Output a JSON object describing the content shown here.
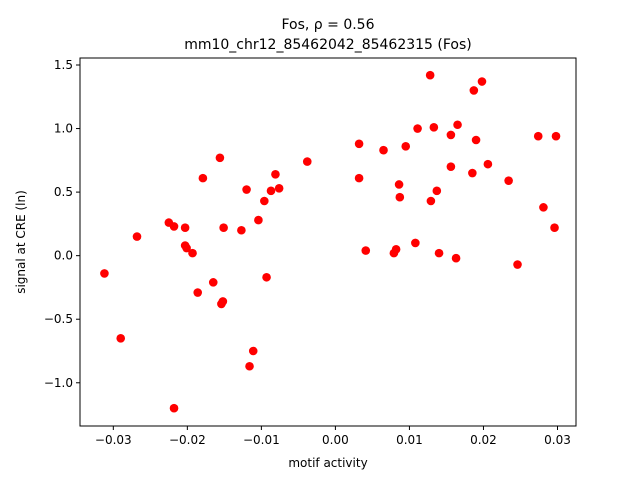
{
  "chart_data": {
    "type": "scatter",
    "title_line1": "Fos, ρ = 0.56",
    "title_line2": "mm10_chr12_85462042_85462315 (Fos)",
    "xlabel": "motif activity",
    "ylabel": "signal at CRE (ln)",
    "xlim": [
      -0.0345,
      0.0325
    ],
    "ylim": [
      -1.34,
      1.555
    ],
    "xticks": [
      -0.03,
      -0.02,
      -0.01,
      0.0,
      0.01,
      0.02,
      0.03
    ],
    "xtick_labels": [
      "−0.03",
      "−0.02",
      "−0.01",
      "0.00",
      "0.01",
      "0.02",
      "0.03"
    ],
    "yticks": [
      -1.0,
      -0.5,
      0.0,
      0.5,
      1.0,
      1.5
    ],
    "ytick_labels": [
      "−1.0",
      "−0.5",
      "0.0",
      "0.5",
      "1.0",
      "1.5"
    ],
    "grid": false,
    "marker_color": "#ff0000",
    "points": [
      {
        "x": -0.0312,
        "y": -0.14
      },
      {
        "x": -0.029,
        "y": -0.65
      },
      {
        "x": -0.0268,
        "y": 0.15
      },
      {
        "x": -0.0225,
        "y": 0.26
      },
      {
        "x": -0.0218,
        "y": 0.23
      },
      {
        "x": -0.0218,
        "y": -1.2
      },
      {
        "x": -0.0203,
        "y": 0.22
      },
      {
        "x": -0.0203,
        "y": 0.08
      },
      {
        "x": -0.0201,
        "y": 0.06
      },
      {
        "x": -0.0193,
        "y": 0.02
      },
      {
        "x": -0.0186,
        "y": -0.29
      },
      {
        "x": -0.0179,
        "y": 0.61
      },
      {
        "x": -0.0165,
        "y": -0.21
      },
      {
        "x": -0.0156,
        "y": 0.77
      },
      {
        "x": -0.0154,
        "y": -0.38
      },
      {
        "x": -0.0152,
        "y": -0.36
      },
      {
        "x": -0.0151,
        "y": 0.22
      },
      {
        "x": -0.0127,
        "y": 0.2
      },
      {
        "x": -0.012,
        "y": 0.52
      },
      {
        "x": -0.0116,
        "y": -0.87
      },
      {
        "x": -0.0111,
        "y": -0.75
      },
      {
        "x": -0.0104,
        "y": 0.28
      },
      {
        "x": -0.0096,
        "y": 0.43
      },
      {
        "x": -0.0093,
        "y": -0.17
      },
      {
        "x": -0.0087,
        "y": 0.51
      },
      {
        "x": -0.0081,
        "y": 0.64
      },
      {
        "x": -0.0076,
        "y": 0.53
      },
      {
        "x": -0.0038,
        "y": 0.74
      },
      {
        "x": 0.0032,
        "y": 0.88
      },
      {
        "x": 0.0032,
        "y": 0.61
      },
      {
        "x": 0.0041,
        "y": 0.04
      },
      {
        "x": 0.0065,
        "y": 0.83
      },
      {
        "x": 0.0079,
        "y": 0.02
      },
      {
        "x": 0.0082,
        "y": 0.05
      },
      {
        "x": 0.0086,
        "y": 0.56
      },
      {
        "x": 0.0087,
        "y": 0.46
      },
      {
        "x": 0.0095,
        "y": 0.86
      },
      {
        "x": 0.0108,
        "y": 0.1
      },
      {
        "x": 0.0111,
        "y": 1.0
      },
      {
        "x": 0.0128,
        "y": 1.42
      },
      {
        "x": 0.0129,
        "y": 0.43
      },
      {
        "x": 0.0133,
        "y": 1.01
      },
      {
        "x": 0.0137,
        "y": 0.51
      },
      {
        "x": 0.014,
        "y": 0.02
      },
      {
        "x": 0.0156,
        "y": 0.95
      },
      {
        "x": 0.0156,
        "y": 0.7
      },
      {
        "x": 0.0163,
        "y": -0.02
      },
      {
        "x": 0.0165,
        "y": 1.03
      },
      {
        "x": 0.0185,
        "y": 0.65
      },
      {
        "x": 0.0187,
        "y": 1.3
      },
      {
        "x": 0.019,
        "y": 0.91
      },
      {
        "x": 0.0198,
        "y": 1.37
      },
      {
        "x": 0.0206,
        "y": 0.72
      },
      {
        "x": 0.0234,
        "y": 0.59
      },
      {
        "x": 0.0246,
        "y": -0.07
      },
      {
        "x": 0.0274,
        "y": 0.94
      },
      {
        "x": 0.0281,
        "y": 0.38
      },
      {
        "x": 0.0296,
        "y": 0.22
      },
      {
        "x": 0.0298,
        "y": 0.94
      }
    ]
  }
}
